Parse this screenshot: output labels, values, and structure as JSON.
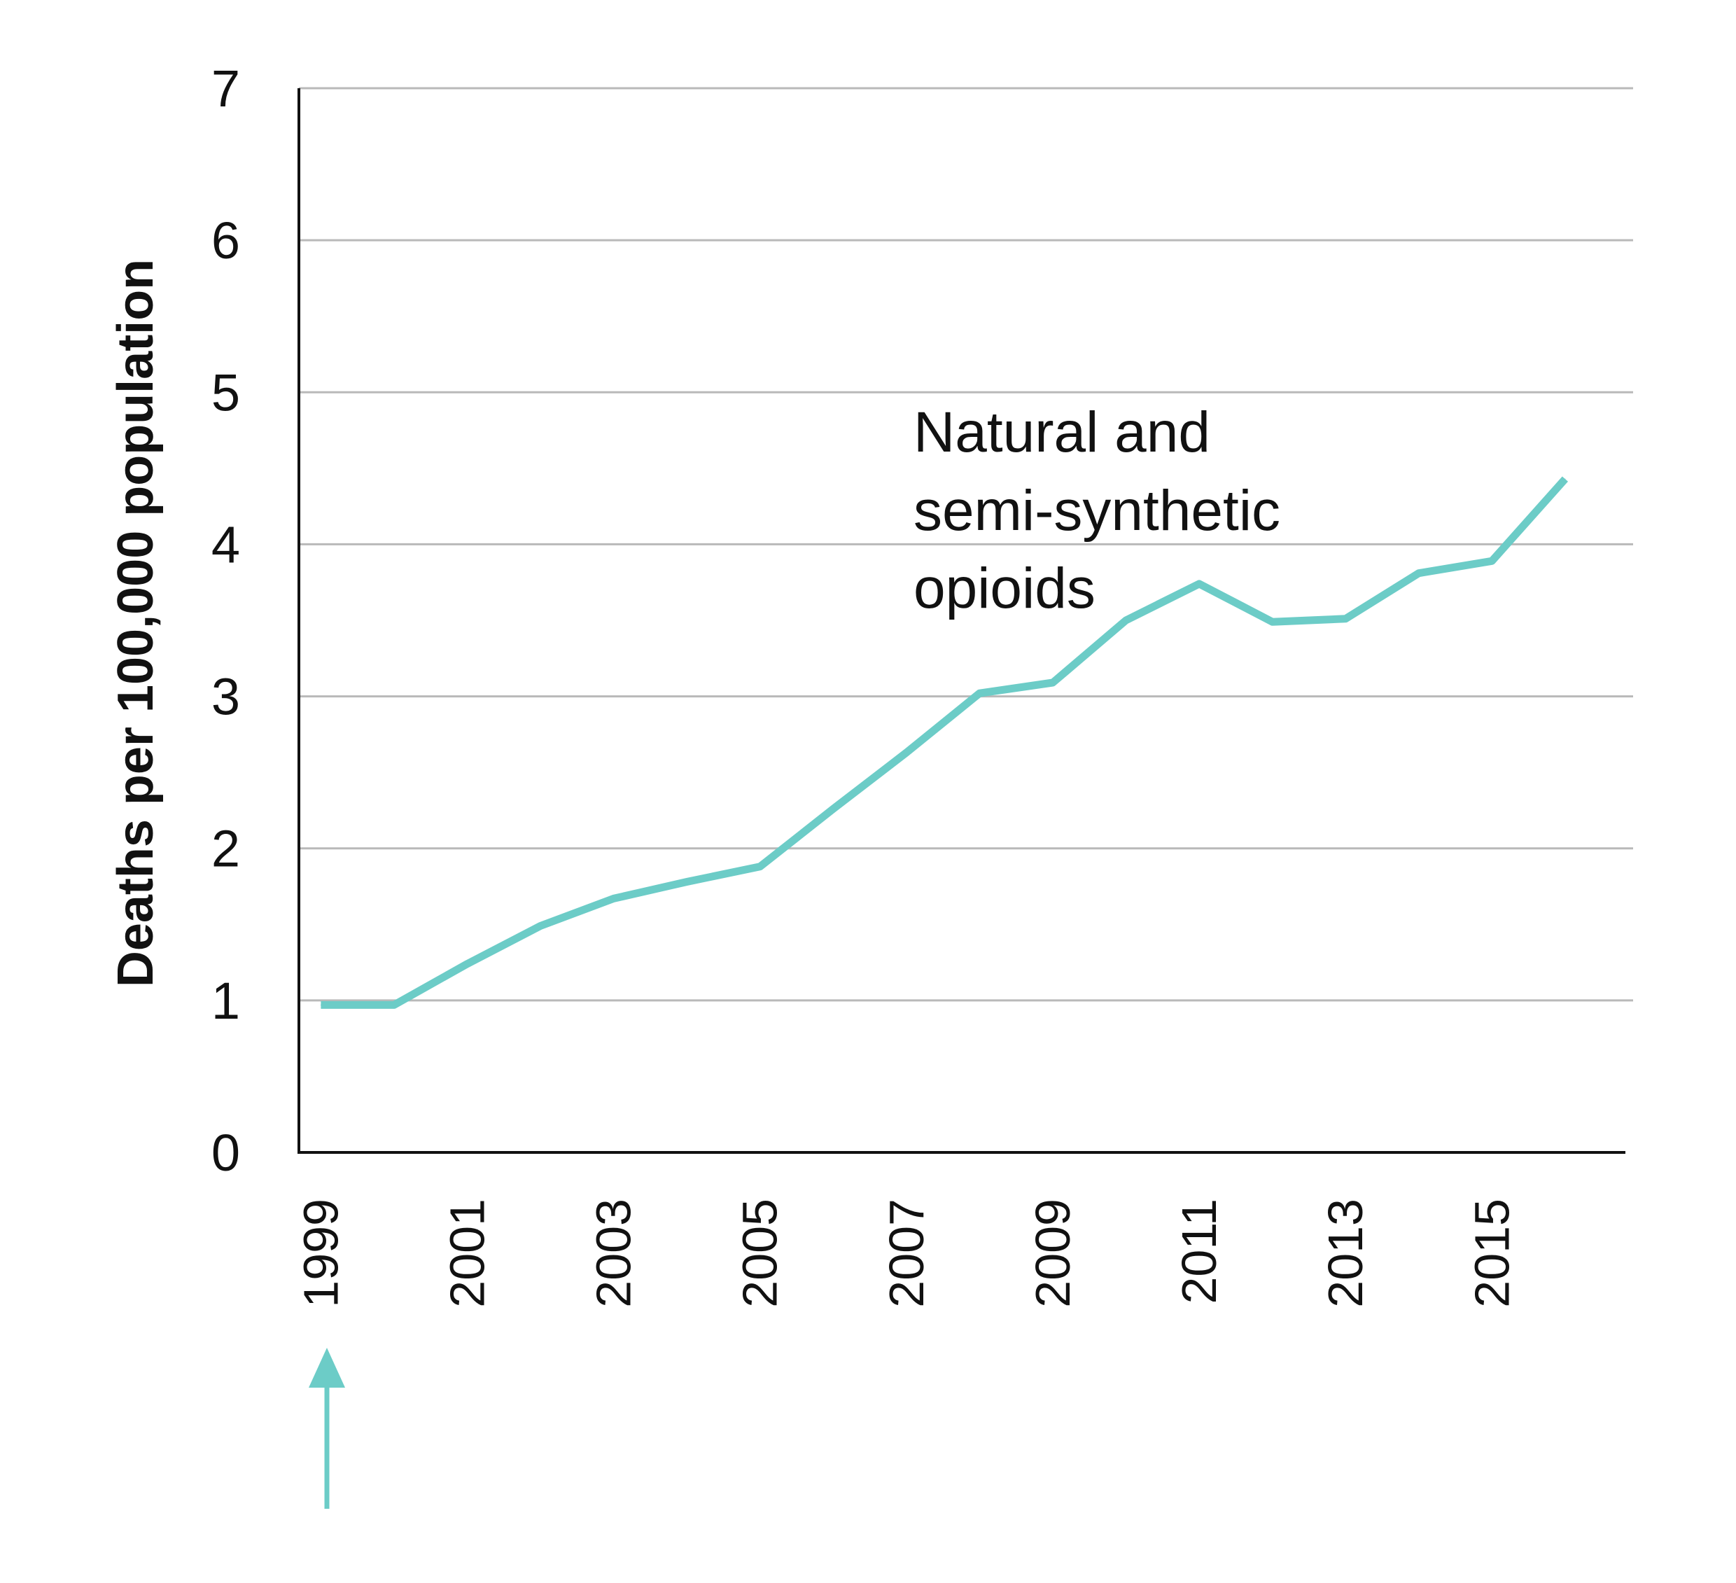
{
  "chart_data": {
    "type": "line",
    "title": "",
    "xlabel": "",
    "ylabel": "Deaths per 100,000 population",
    "ylim": [
      0,
      7
    ],
    "xlim": [
      1998.7,
      2016.9
    ],
    "yticks": [
      "0",
      "1",
      "2",
      "3",
      "4",
      "5",
      "6",
      "7"
    ],
    "xticks": [
      "1999",
      "2001",
      "2003",
      "2005",
      "2007",
      "2009",
      "2011",
      "2013",
      "2015"
    ],
    "grid": true,
    "series": [
      {
        "name": "",
        "color": "#6cccc7",
        "x": [
          1999,
          2000,
          2001,
          2002,
          2003,
          2004,
          2005,
          2006,
          2007,
          2008,
          2009,
          2010,
          2011,
          2012,
          2013,
          2014,
          2015,
          2016
        ],
        "y": [
          0.97,
          0.97,
          1.24,
          1.49,
          1.67,
          1.78,
          1.88,
          2.26,
          2.63,
          3.02,
          3.09,
          3.5,
          3.74,
          3.49,
          3.51,
          3.81,
          3.89,
          4.43
        ]
      }
    ],
    "annotations": [
      {
        "lines": [
          "Natural and",
          "semi-synthetic",
          "opioids"
        ]
      }
    ],
    "arrow_color": "#6cccc7"
  }
}
